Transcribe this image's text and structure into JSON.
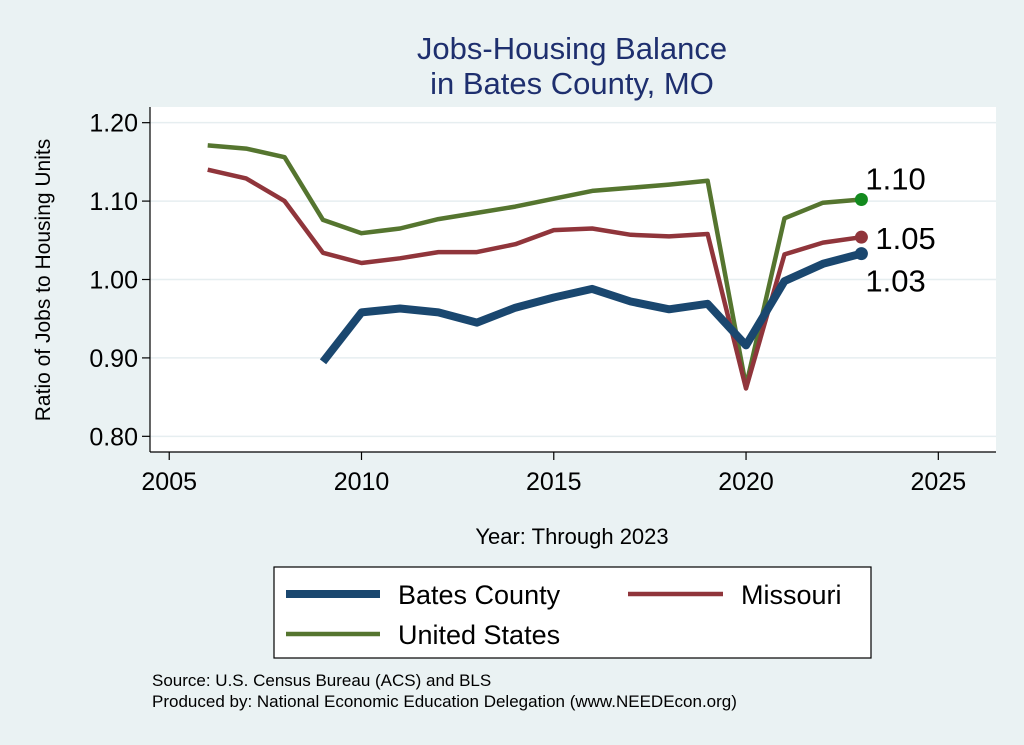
{
  "chart_data": {
    "type": "line",
    "title": [
      "Jobs-Housing Balance",
      "in Bates County, MO"
    ],
    "xlabel": "Year: Through 2023",
    "ylabel": "Ratio of Jobs to Housing Units",
    "xlim": [
      2004.5,
      2026.5
    ],
    "ylim": [
      0.78,
      1.22
    ],
    "xticks": [
      2005,
      2010,
      2015,
      2020,
      2025
    ],
    "yticks": [
      0.8,
      0.9,
      1.0,
      1.1,
      1.2
    ],
    "ytick_labels": [
      "0.80",
      "0.90",
      "1.00",
      "1.10",
      "1.20"
    ],
    "grid": true,
    "legend_position": "bottom",
    "series": [
      {
        "name": "Bates County",
        "color": "#1a476f",
        "x": [
          2009,
          2010,
          2011,
          2012,
          2013,
          2014,
          2015,
          2016,
          2017,
          2018,
          2019,
          2020,
          2021,
          2022,
          2023
        ],
        "y": [
          0.895,
          0.958,
          0.963,
          0.958,
          0.945,
          0.964,
          0.977,
          0.988,
          0.972,
          0.962,
          0.969,
          0.916,
          0.998,
          1.02,
          1.033
        ],
        "end_label": "1.03"
      },
      {
        "name": "Missouri",
        "color": "#90353b",
        "x": [
          2006,
          2007,
          2008,
          2009,
          2010,
          2011,
          2012,
          2013,
          2014,
          2015,
          2016,
          2017,
          2018,
          2019,
          2020,
          2021,
          2022,
          2023
        ],
        "y": [
          1.14,
          1.129,
          1.1,
          1.034,
          1.021,
          1.027,
          1.035,
          1.035,
          1.045,
          1.063,
          1.065,
          1.057,
          1.055,
          1.058,
          0.861,
          1.032,
          1.047,
          1.054
        ],
        "end_label": "1.05"
      },
      {
        "name": "United States",
        "color": "#55752f",
        "x": [
          2006,
          2007,
          2008,
          2009,
          2010,
          2011,
          2012,
          2013,
          2014,
          2015,
          2016,
          2017,
          2018,
          2019,
          2020,
          2021,
          2022,
          2023
        ],
        "y": [
          1.171,
          1.167,
          1.156,
          1.076,
          1.059,
          1.065,
          1.077,
          1.085,
          1.093,
          1.103,
          1.113,
          1.117,
          1.121,
          1.126,
          0.864,
          1.078,
          1.098,
          1.102
        ],
        "end_label": "1.10",
        "end_marker_color": "#138a1e"
      }
    ]
  },
  "source_line": "Source: U.S. Census Bureau (ACS) and BLS",
  "produced_line": "Produced by: National Economic Education Delegation (www.NEEDEcon.org)"
}
